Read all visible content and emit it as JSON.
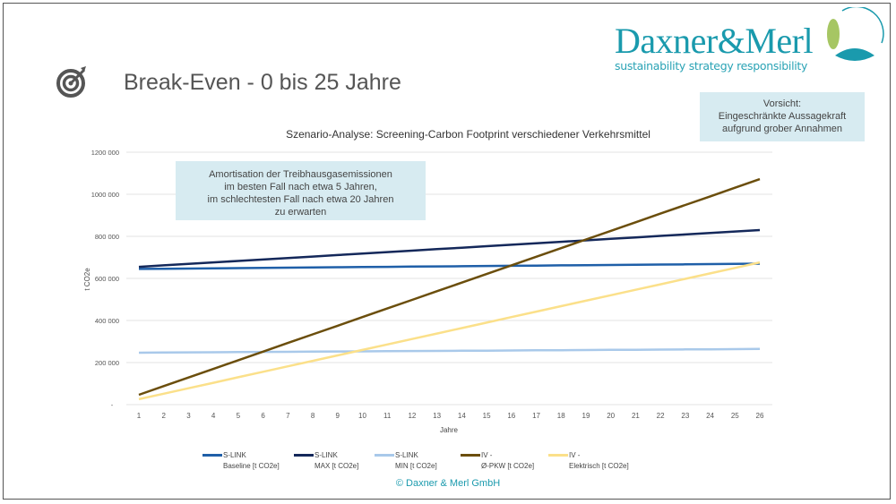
{
  "slide": {
    "title": "Break-Even - 0 bis 25 Jahre",
    "logo": {
      "name": "Daxner&Merl",
      "tagline": "sustainability strategy responsibility"
    },
    "note_caution": [
      "Vorsicht:",
      "Eingeschränkte Aussagekraft",
      "aufgrund grober Annahmen"
    ],
    "note_amortisation": [
      "Amortisation der Treibhausgasemissionen",
      "im besten Fall nach etwa 5 Jahren,",
      "im schlechtesten Fall nach etwa 20 Jahren",
      "zu erwarten"
    ],
    "copyright": "© Daxner & Merl GmbH",
    "icons": [
      "target-icon"
    ]
  },
  "chart_data": {
    "type": "line",
    "title": "Szenario-Analyse: Screening-Carbon Footprint verschiedener Verkehrsmittel",
    "xlabel": "Jahre",
    "ylabel": "t CO2e",
    "x": [
      1,
      2,
      3,
      4,
      5,
      6,
      7,
      8,
      9,
      10,
      11,
      12,
      13,
      14,
      15,
      16,
      17,
      18,
      19,
      20,
      21,
      22,
      23,
      24,
      25,
      26
    ],
    "ylim": [
      0,
      1200000
    ],
    "yticks": [
      0,
      200000,
      400000,
      600000,
      800000,
      1000000,
      1200000
    ],
    "ytick_labels": [
      "-",
      "200 000",
      "400 000",
      "600 000",
      "800 000",
      "1000 000",
      "1200 000"
    ],
    "grid": true,
    "legend_position": "bottom",
    "series": [
      {
        "name": "S-LINK Baseline [t CO2e]",
        "line1": "S-LINK",
        "line2": "Baseline [t CO2e]",
        "color": "#1f5fa8",
        "values": [
          645000,
          646000,
          647000,
          648000,
          649000,
          650000,
          651000,
          652000,
          653000,
          654000,
          655000,
          656000,
          657000,
          658000,
          659000,
          660000,
          661000,
          662000,
          663000,
          664000,
          665000,
          666000,
          667000,
          668000,
          669000,
          670000
        ]
      },
      {
        "name": "S-LINK MAX [t CO2e]",
        "line1": "S-LINK",
        "line2": "MAX [t CO2e]",
        "color": "#14285a",
        "values": [
          655000,
          662000,
          669000,
          676000,
          683000,
          690000,
          697000,
          704000,
          711000,
          718000,
          725000,
          732000,
          739000,
          746000,
          753000,
          760000,
          767000,
          774000,
          781000,
          788000,
          795000,
          802000,
          809000,
          816000,
          823000,
          830000
        ]
      },
      {
        "name": "S-LINK MIN [t CO2e]",
        "line1": "S-LINK",
        "line2": "MIN [t CO2e]",
        "color": "#a9c9ea",
        "values": [
          247000,
          247700,
          248400,
          249100,
          249800,
          250500,
          251200,
          251900,
          252600,
          253300,
          254000,
          254700,
          255400,
          256100,
          256800,
          257500,
          258200,
          258900,
          259600,
          260300,
          261000,
          261700,
          262400,
          263100,
          263800,
          264500
        ]
      },
      {
        "name": "IV - Ø-PKW [t CO2e]",
        "line1": "IV -",
        "line2": "Ø-PKW [t CO2e]",
        "color": "#6b4e0c",
        "values": [
          47000,
          88000,
          129000,
          170000,
          211000,
          252000,
          293000,
          334000,
          375000,
          416000,
          457000,
          498000,
          539000,
          580000,
          621000,
          662000,
          703000,
          744000,
          785000,
          826000,
          867000,
          908000,
          949000,
          990000,
          1031000,
          1072000
        ]
      },
      {
        "name": "IV - Elektrisch [t CO2e]",
        "line1": "IV -",
        "line2": "Elektrisch [t CO2e]",
        "color": "#fbe08a",
        "values": [
          26000,
          52000,
          78000,
          104000,
          130000,
          156000,
          182000,
          208000,
          234000,
          260000,
          286000,
          312000,
          338000,
          364000,
          390000,
          416000,
          442000,
          468000,
          494000,
          520000,
          546000,
          572000,
          598000,
          624000,
          650000,
          676000
        ]
      }
    ]
  }
}
